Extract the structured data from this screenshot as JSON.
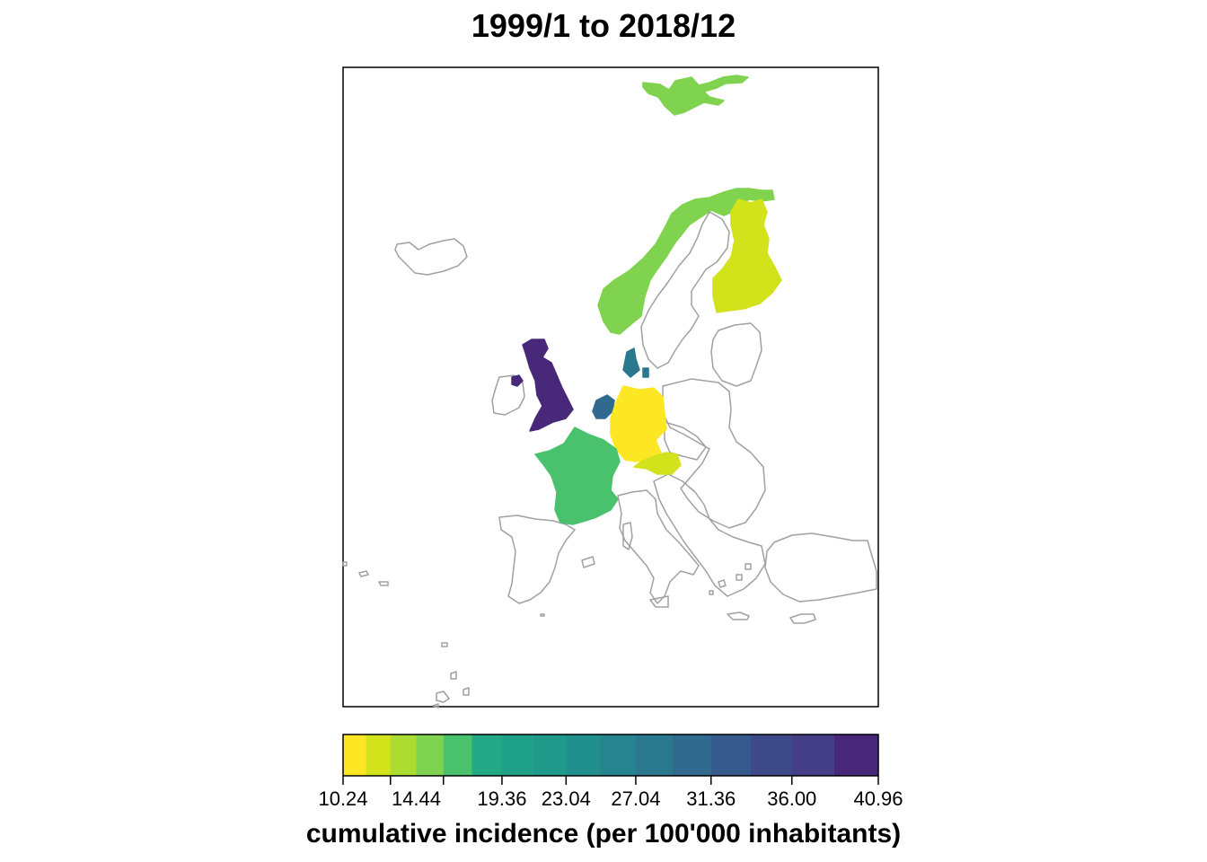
{
  "title": "1999/1 to 2018/12",
  "legend": {
    "title": "cumulative incidence (per 100'000 inhabitants)",
    "min": 10.24,
    "max": 40.96,
    "breaks": [
      10.24,
      11.56,
      12.96,
      14.44,
      16.0,
      17.64,
      19.36,
      21.16,
      23.04,
      25.0,
      27.04,
      29.16,
      31.36,
      33.64,
      36.0,
      38.44,
      40.96
    ],
    "labels": [
      "10.24",
      "14.44",
      "19.36",
      "23.04",
      "27.04",
      "31.36",
      "36.00",
      "40.96"
    ],
    "colors": [
      "#FDE725",
      "#D2E21B",
      "#ADDC30",
      "#7FD34E",
      "#4AC16D",
      "#22A884",
      "#1FA188",
      "#1F9A8A",
      "#21908D",
      "#25848E",
      "#2A788E",
      "#306A8E",
      "#375A8C",
      "#3E4A89",
      "#433E85",
      "#482878",
      "#440154"
    ]
  },
  "map": {
    "border_color": "#A0A0A0",
    "countries": [
      {
        "name": "Iceland",
        "value": null
      },
      {
        "name": "Norway",
        "value": 15.2
      },
      {
        "name": "Svalbard",
        "value": 15.2
      },
      {
        "name": "Finland",
        "value": 11.6
      },
      {
        "name": "Sweden",
        "value": null
      },
      {
        "name": "United Kingdom",
        "value": 40.9
      },
      {
        "name": "Denmark",
        "value": 29.0
      },
      {
        "name": "Netherlands",
        "value": 30.5
      },
      {
        "name": "Germany",
        "value": 10.5
      },
      {
        "name": "France",
        "value": 17.0
      },
      {
        "name": "Austria",
        "value": 12.9
      },
      {
        "name": "Spain",
        "value": null
      },
      {
        "name": "Italy",
        "value": null
      }
    ]
  }
}
